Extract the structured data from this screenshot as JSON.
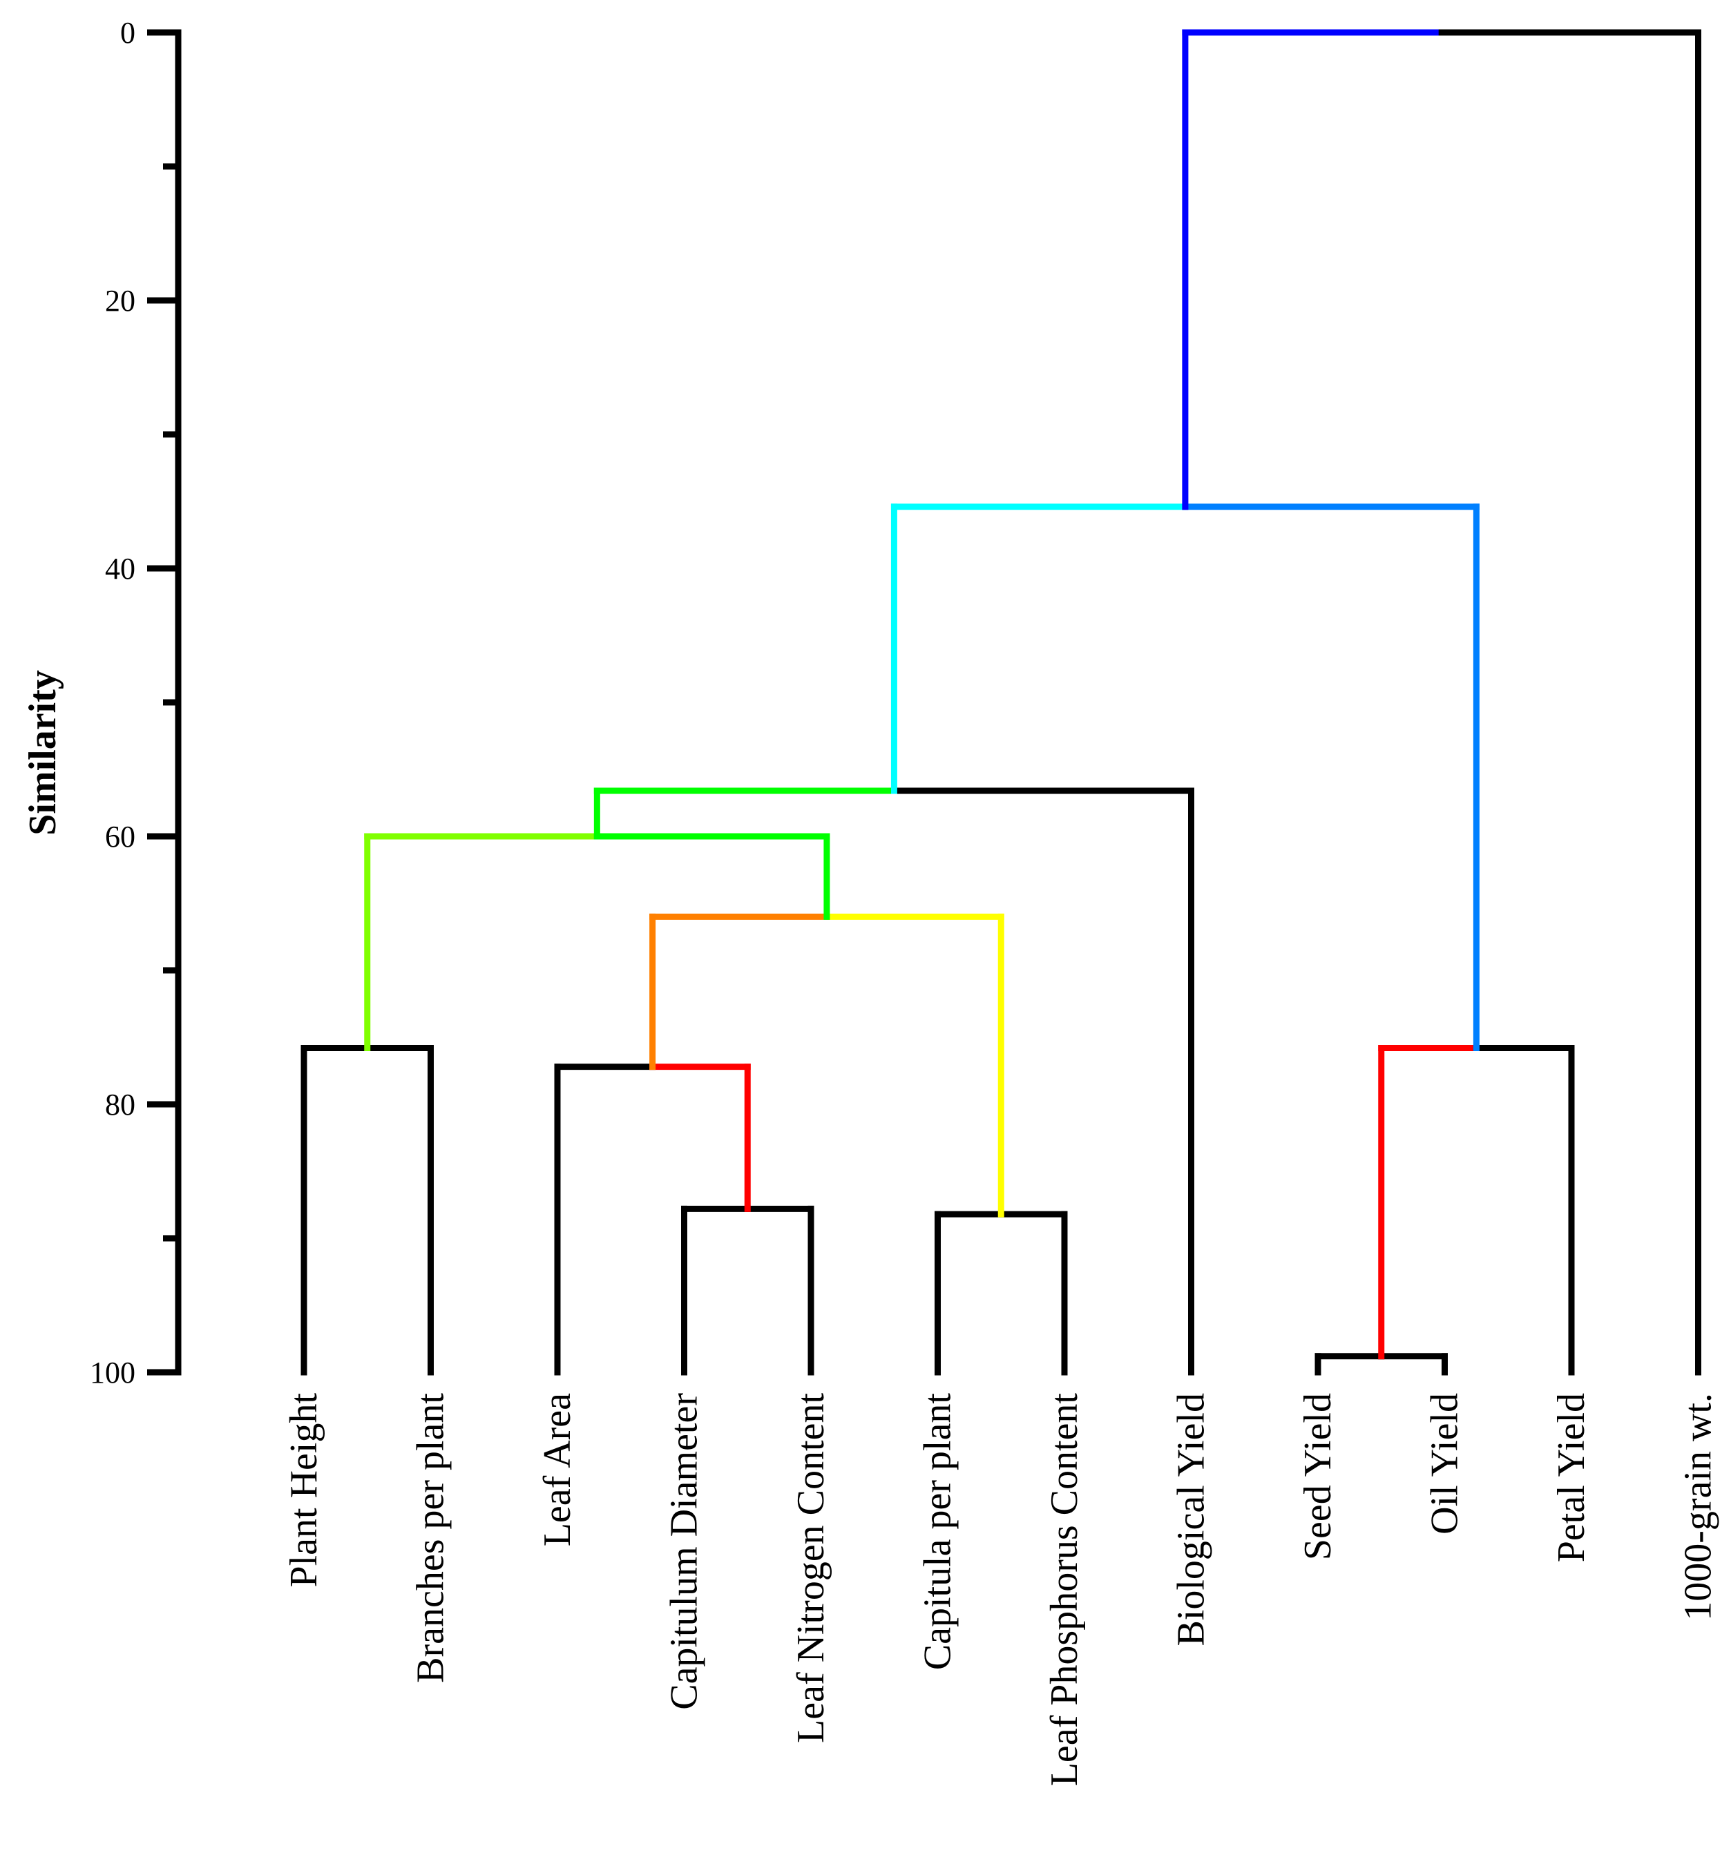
{
  "chart_data": {
    "type": "dendrogram",
    "ylabel": "Similarity",
    "ylim": [
      0,
      100
    ],
    "yticks": [
      0,
      20,
      40,
      60,
      80,
      100
    ],
    "y_tick_labels": [
      "0",
      "20",
      "40",
      "60",
      "80",
      "100"
    ],
    "y_minor_step": 10,
    "leaves": [
      "Plant Height",
      "Branches per plant",
      "Leaf Area",
      "Capitulum Diameter",
      "Leaf Nitrogen Content",
      "Capitula per plant",
      "Leaf Phosphorus Content",
      "Biological Yield",
      "Seed Yield",
      "Oil Yield",
      "Petal Yield",
      "1000-grain wt."
    ],
    "merges": [
      {
        "id": "m1",
        "left": "Plant Height",
        "right": "Branches per plant",
        "similarity": 75.8,
        "left_color": "#000000",
        "right_color": "#000000"
      },
      {
        "id": "m2",
        "left": "Capitulum Diameter",
        "right": "Leaf Nitrogen Content",
        "similarity": 87.8,
        "left_color": "#000000",
        "right_color": "#000000"
      },
      {
        "id": "m3",
        "left": "Leaf Area",
        "right": "m2",
        "similarity": 77.2,
        "left_color": "#000000",
        "right_color": "#ff0000"
      },
      {
        "id": "m4",
        "left": "Capitula per plant",
        "right": "Leaf Phosphorus Content",
        "similarity": 88.2,
        "left_color": "#000000",
        "right_color": "#000000"
      },
      {
        "id": "m5",
        "left": "m3",
        "right": "m4",
        "similarity": 66.0,
        "left_color": "#ff8000",
        "right_color": "#ffff00"
      },
      {
        "id": "m6",
        "left": "m1",
        "right": "m5",
        "similarity": 60.0,
        "left_color": "#80ff00",
        "right_color": "#00ff00"
      },
      {
        "id": "m7",
        "left": "m6",
        "right": "Biological Yield",
        "similarity": 56.6,
        "left_color": "#00ff00",
        "right_color": "#000000"
      },
      {
        "id": "m8",
        "left": "Seed Yield",
        "right": "Oil Yield",
        "similarity": 98.8,
        "left_color": "#000000",
        "right_color": "#000000"
      },
      {
        "id": "m9",
        "left": "m8",
        "right": "Petal Yield",
        "similarity": 75.8,
        "left_color": "#ff0000",
        "right_color": "#000000"
      },
      {
        "id": "m10",
        "left": "m7",
        "right": "m9",
        "similarity": 35.4,
        "left_color": "#00ffff",
        "right_color": "#0080ff"
      },
      {
        "id": "m11",
        "left": "m10",
        "right": "1000-grain wt.",
        "similarity": 0.0,
        "left_color": "#0000ff",
        "right_color": "#000000"
      }
    ]
  }
}
